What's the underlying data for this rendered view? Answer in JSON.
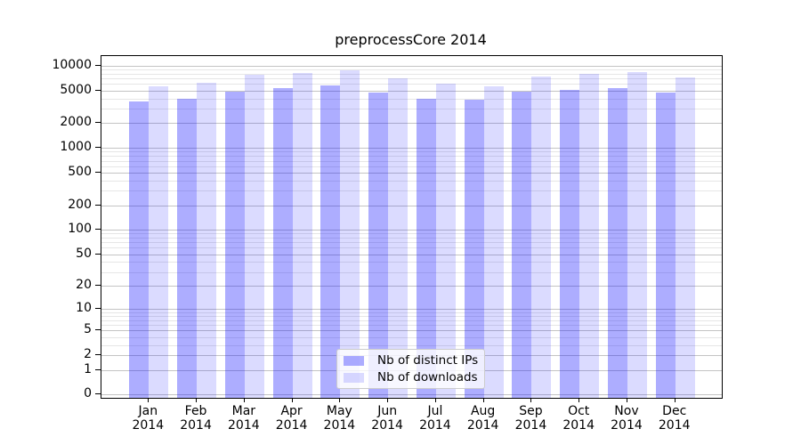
{
  "title": "preprocessCore 2014",
  "legend": {
    "items": [
      {
        "label": "Nb of distinct IPs",
        "swatch": "bar-swatch-dark"
      },
      {
        "label": "Nb of downloads",
        "swatch": "bar-swatch-light"
      }
    ],
    "position": "lower center"
  },
  "chart_data": {
    "type": "bar",
    "title": "preprocessCore 2014",
    "categories": [
      "Jan 2014",
      "Feb 2014",
      "Mar 2014",
      "Apr 2014",
      "May 2014",
      "Jun 2014",
      "Jul 2014",
      "Aug 2014",
      "Sep 2014",
      "Oct 2014",
      "Nov 2014",
      "Dec 2014"
    ],
    "series": [
      {
        "name": "Nb of distinct IPs",
        "values": [
          3700,
          4000,
          4800,
          5400,
          5800,
          4700,
          4000,
          3900,
          4900,
          5100,
          5300,
          4700
        ]
      },
      {
        "name": "Nb of downloads",
        "values": [
          5700,
          6300,
          7700,
          8200,
          8900,
          7000,
          6100,
          5700,
          7500,
          8000,
          8300,
          7200
        ]
      }
    ],
    "xlabel": "",
    "ylabel": "",
    "yscale": "log1p",
    "ylim": [
      0,
      13000
    ],
    "yticks": [
      0,
      1,
      2,
      5,
      10,
      20,
      50,
      100,
      200,
      500,
      1000,
      2000,
      5000,
      10000
    ],
    "minor_tick_factors": [
      3,
      4,
      6,
      7,
      8,
      9
    ],
    "grid": true,
    "legend_position": "lower center",
    "colors": {
      "bar_ips": "rgba(0,0,255,0.32)",
      "bar_downloads": "rgba(0,0,255,0.14)",
      "bar_ips_hex": "#aaaaff",
      "bar_downloads_hex": "#dcdcff",
      "grid_major": "#c4c4c4",
      "grid_minor": "#e6e6e6",
      "axis": "#000000",
      "legend_border": "#cccccc"
    }
  }
}
